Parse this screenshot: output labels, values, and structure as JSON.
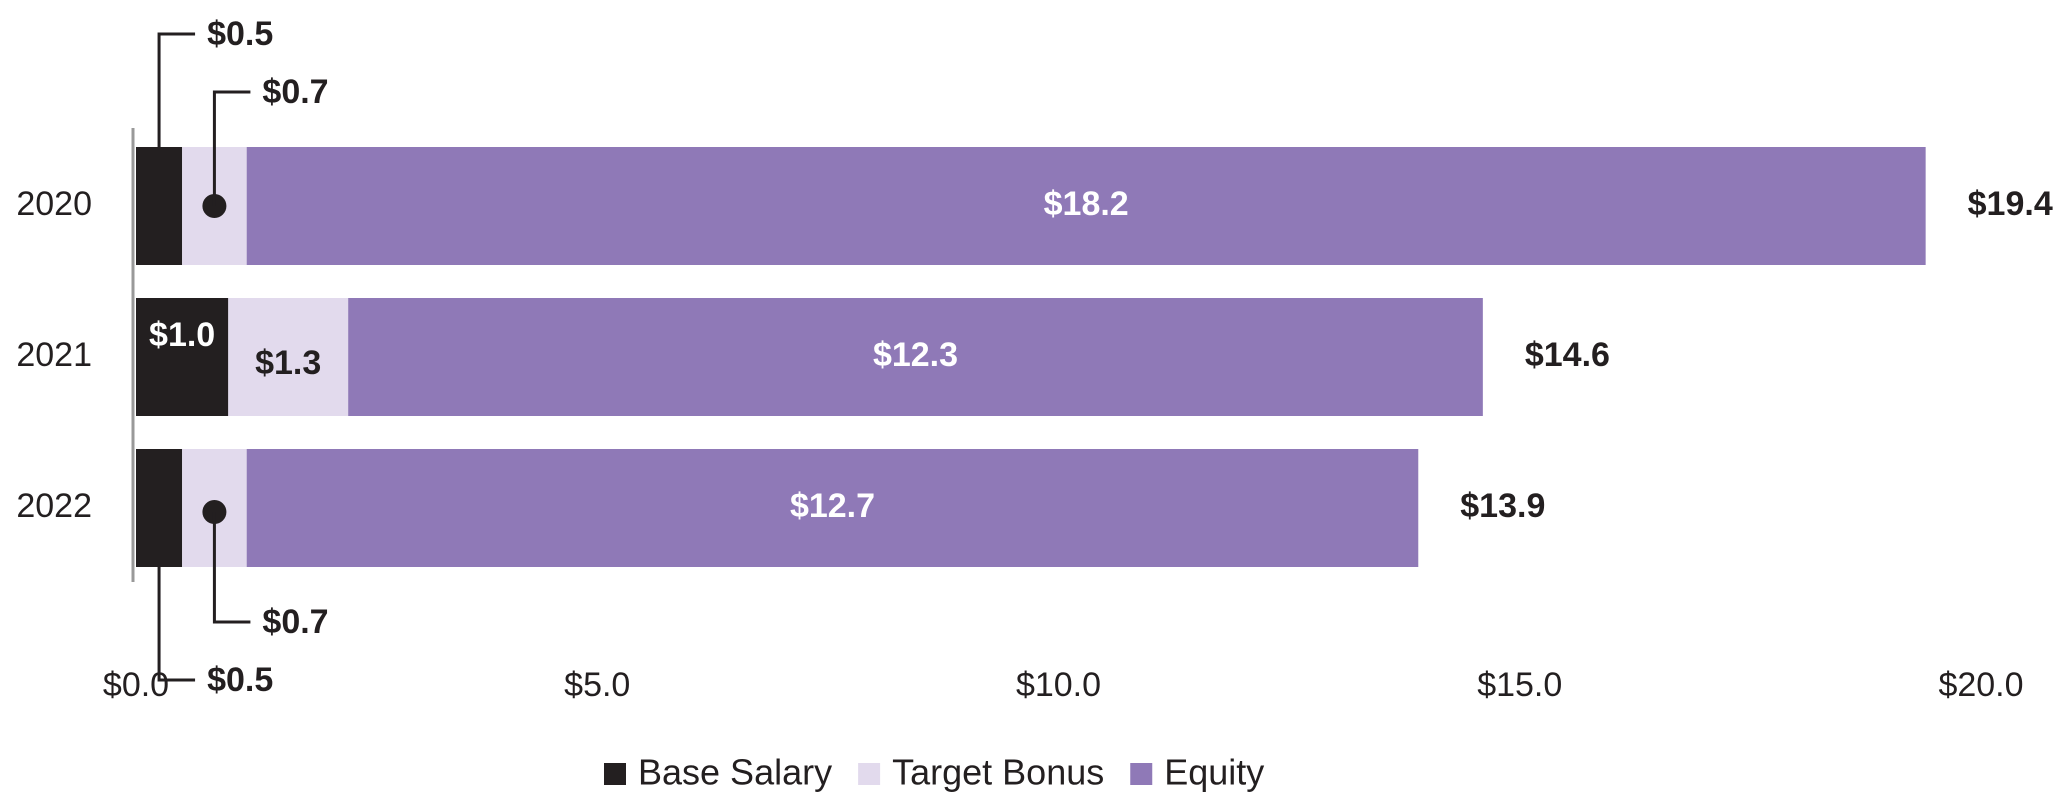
{
  "chart_data": {
    "type": "stacked-bar-horizontal",
    "categories": [
      "2020",
      "2021",
      "2022"
    ],
    "series": [
      {
        "name": "Base Salary",
        "color": "#231f20",
        "values": [
          0.5,
          1.0,
          0.5
        ],
        "value_labels": [
          "$0.5",
          "$1.0",
          "$0.5"
        ]
      },
      {
        "name": "Target Bonus",
        "color": "#e2daed",
        "values": [
          0.7,
          1.3,
          0.7
        ],
        "value_labels": [
          "$0.7",
          "$1.3",
          "$0.7"
        ]
      },
      {
        "name": "Equity",
        "color": "#8f79b7",
        "values": [
          18.2,
          12.3,
          12.7
        ],
        "value_labels": [
          "$18.2",
          "$12.3",
          "$12.7"
        ]
      }
    ],
    "totals": [
      19.4,
      14.6,
      13.9
    ],
    "total_labels": [
      "$19.4",
      "$14.6",
      "$13.9"
    ],
    "xlim": [
      0,
      20
    ],
    "xticks": [
      {
        "value": 0,
        "label": "$0.0"
      },
      {
        "value": 5,
        "label": "$5.0"
      },
      {
        "value": 10,
        "label": "$10.0"
      },
      {
        "value": 15,
        "label": "$15.0"
      },
      {
        "value": 20,
        "label": "$20.0"
      }
    ],
    "legend": "bottom"
  }
}
